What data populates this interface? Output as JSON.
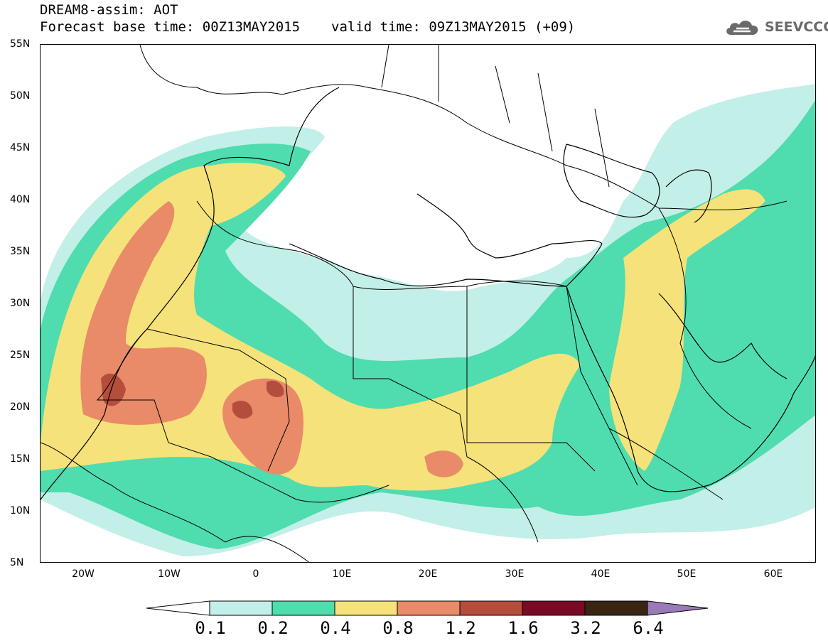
{
  "header": {
    "line1": "DREAM8-assim: AOT",
    "base_time": "Forecast base time: 00Z13MAY2015",
    "valid_time": "valid time: 09Z13MAY2015 (+09)"
  },
  "logo": {
    "text": "SEEVCCC",
    "icon": "cloud-icon"
  },
  "map": {
    "lon_range": [
      -25,
      65
    ],
    "lat_range": [
      5,
      55
    ],
    "lat_ticks": [
      "55N",
      "50N",
      "45N",
      "40N",
      "35N",
      "30N",
      "25N",
      "20N",
      "15N",
      "10N",
      "5N"
    ],
    "lon_ticks": [
      "20W",
      "10W",
      "0",
      "10E",
      "20E",
      "30E",
      "40E",
      "50E",
      "60E"
    ]
  },
  "colorbar": {
    "labels": [
      "0.1",
      "0.2",
      "0.4",
      "0.8",
      "1.2",
      "1.6",
      "3.2",
      "6.4"
    ],
    "colors": [
      "#ffffff",
      "#c3efe9",
      "#4fdcae",
      "#f5e27a",
      "#e98a68",
      "#b54d3c",
      "#7a0a24",
      "#3a2512",
      "#9b7ab8"
    ]
  }
}
